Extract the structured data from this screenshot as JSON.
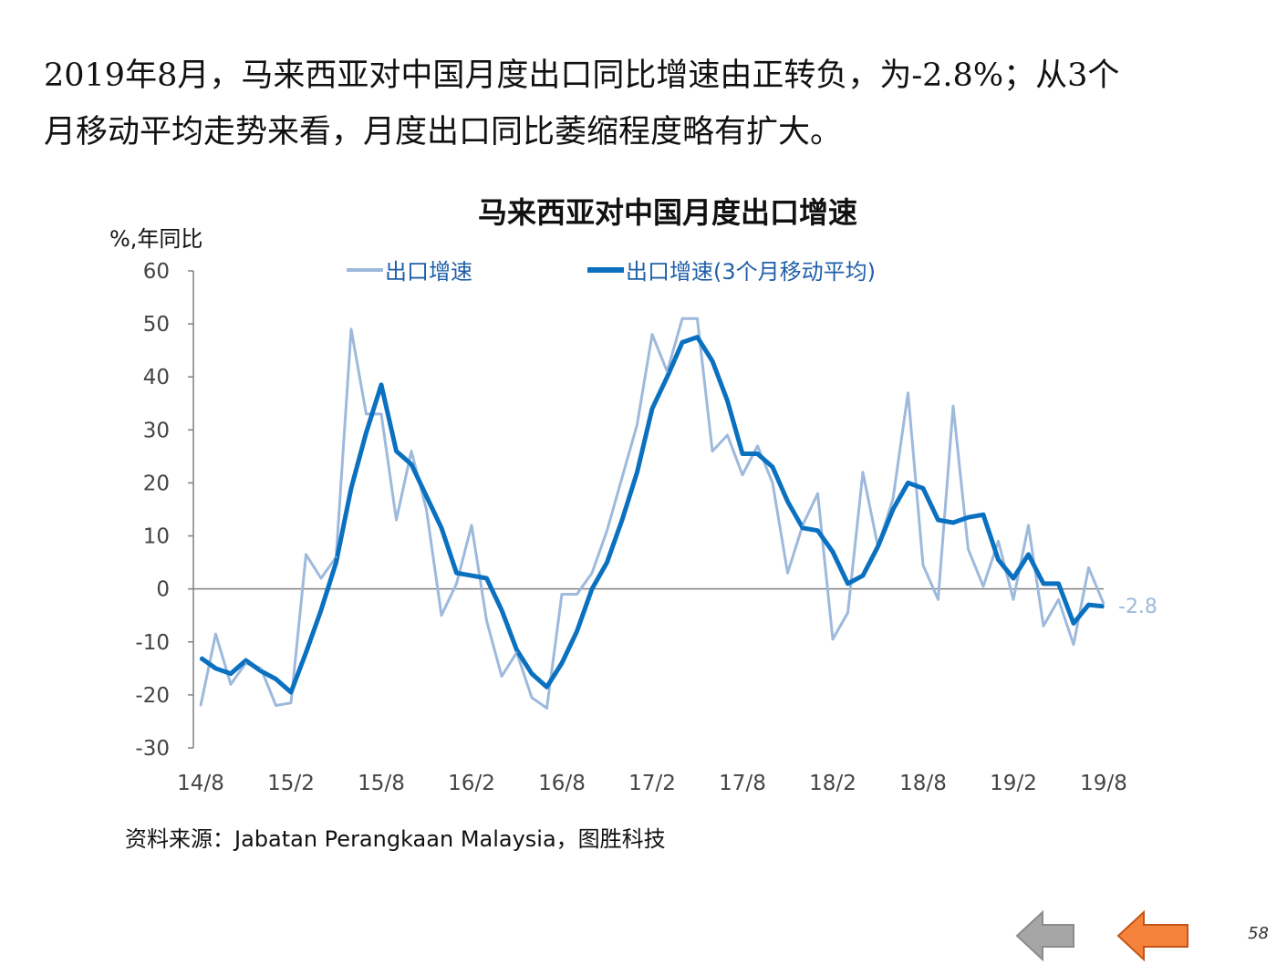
{
  "headline": {
    "line1": "2019年8月，马来西亚对中国月度出口同比增速由正转负，为-2.8%；从3个",
    "line2": "月移动平均走势来看，月度出口同比萎缩程度略有扩大。"
  },
  "source": "资料来源：Jabatan Perangkaan Malaysia，图胜科技",
  "page_number": "58",
  "nav": {
    "prev_icon": "left-arrow-gray-icon",
    "next_icon": "left-arrow-orange-icon"
  },
  "colors": {
    "series_raw": "#9db9dc",
    "series_ma": "#0a70c0",
    "axis": "#808080",
    "prev_arrow": "#a6a6a6",
    "next_arrow": "#f4823a"
  },
  "chart_data": {
    "type": "line",
    "title": "马来西亚对中国月度出口增速",
    "ylabel": "%,年同比",
    "ylim": [
      -30,
      60
    ],
    "yticks": [
      60,
      50,
      40,
      30,
      20,
      10,
      0,
      -10,
      -20,
      -30
    ],
    "xtick_labels": [
      "14/8",
      "15/2",
      "15/8",
      "16/2",
      "16/8",
      "17/2",
      "17/8",
      "18/2",
      "18/8",
      "19/2",
      "19/8"
    ],
    "legend_position": "top",
    "end_label": "-2.8",
    "series": [
      {
        "name": "出口增速",
        "values": [
          -22,
          -8.5,
          -18,
          -14,
          -15,
          -22,
          -21.5,
          6.5,
          2,
          6,
          49,
          33,
          33,
          13,
          26,
          15,
          -5,
          1,
          12,
          -6,
          -16.5,
          -12,
          -20.5,
          -22.5,
          -1,
          -1,
          3,
          11,
          21,
          31,
          48,
          41,
          51,
          51,
          26,
          29,
          21.5,
          27,
          20,
          3,
          12,
          18,
          -9.5,
          -4.5,
          22,
          8,
          17,
          37,
          4.5,
          -2,
          34.5,
          7.5,
          0.5,
          9,
          -2,
          12,
          -7,
          -2,
          -10.5,
          4,
          -2.8
        ]
      },
      {
        "name": "出口增速(3个月移动平均)",
        "values": [
          -13,
          -15,
          -16,
          -13.5,
          -15.5,
          -17,
          -19.5,
          -12,
          -4,
          5,
          19,
          29.5,
          38.5,
          26,
          23.5,
          17.5,
          11.5,
          3,
          2.5,
          2,
          -4,
          -11.5,
          -16,
          -18.5,
          -14,
          -8,
          0,
          5,
          13,
          22,
          34,
          40,
          46.5,
          47.5,
          43,
          35.5,
          25.5,
          25.5,
          23,
          16.5,
          11.5,
          11,
          7,
          1,
          2.5,
          8,
          15,
          20,
          19,
          13,
          12.5,
          13.5,
          14,
          5.5,
          2,
          6.5,
          1,
          1,
          -6.5,
          -3,
          -3.3
        ]
      }
    ]
  }
}
